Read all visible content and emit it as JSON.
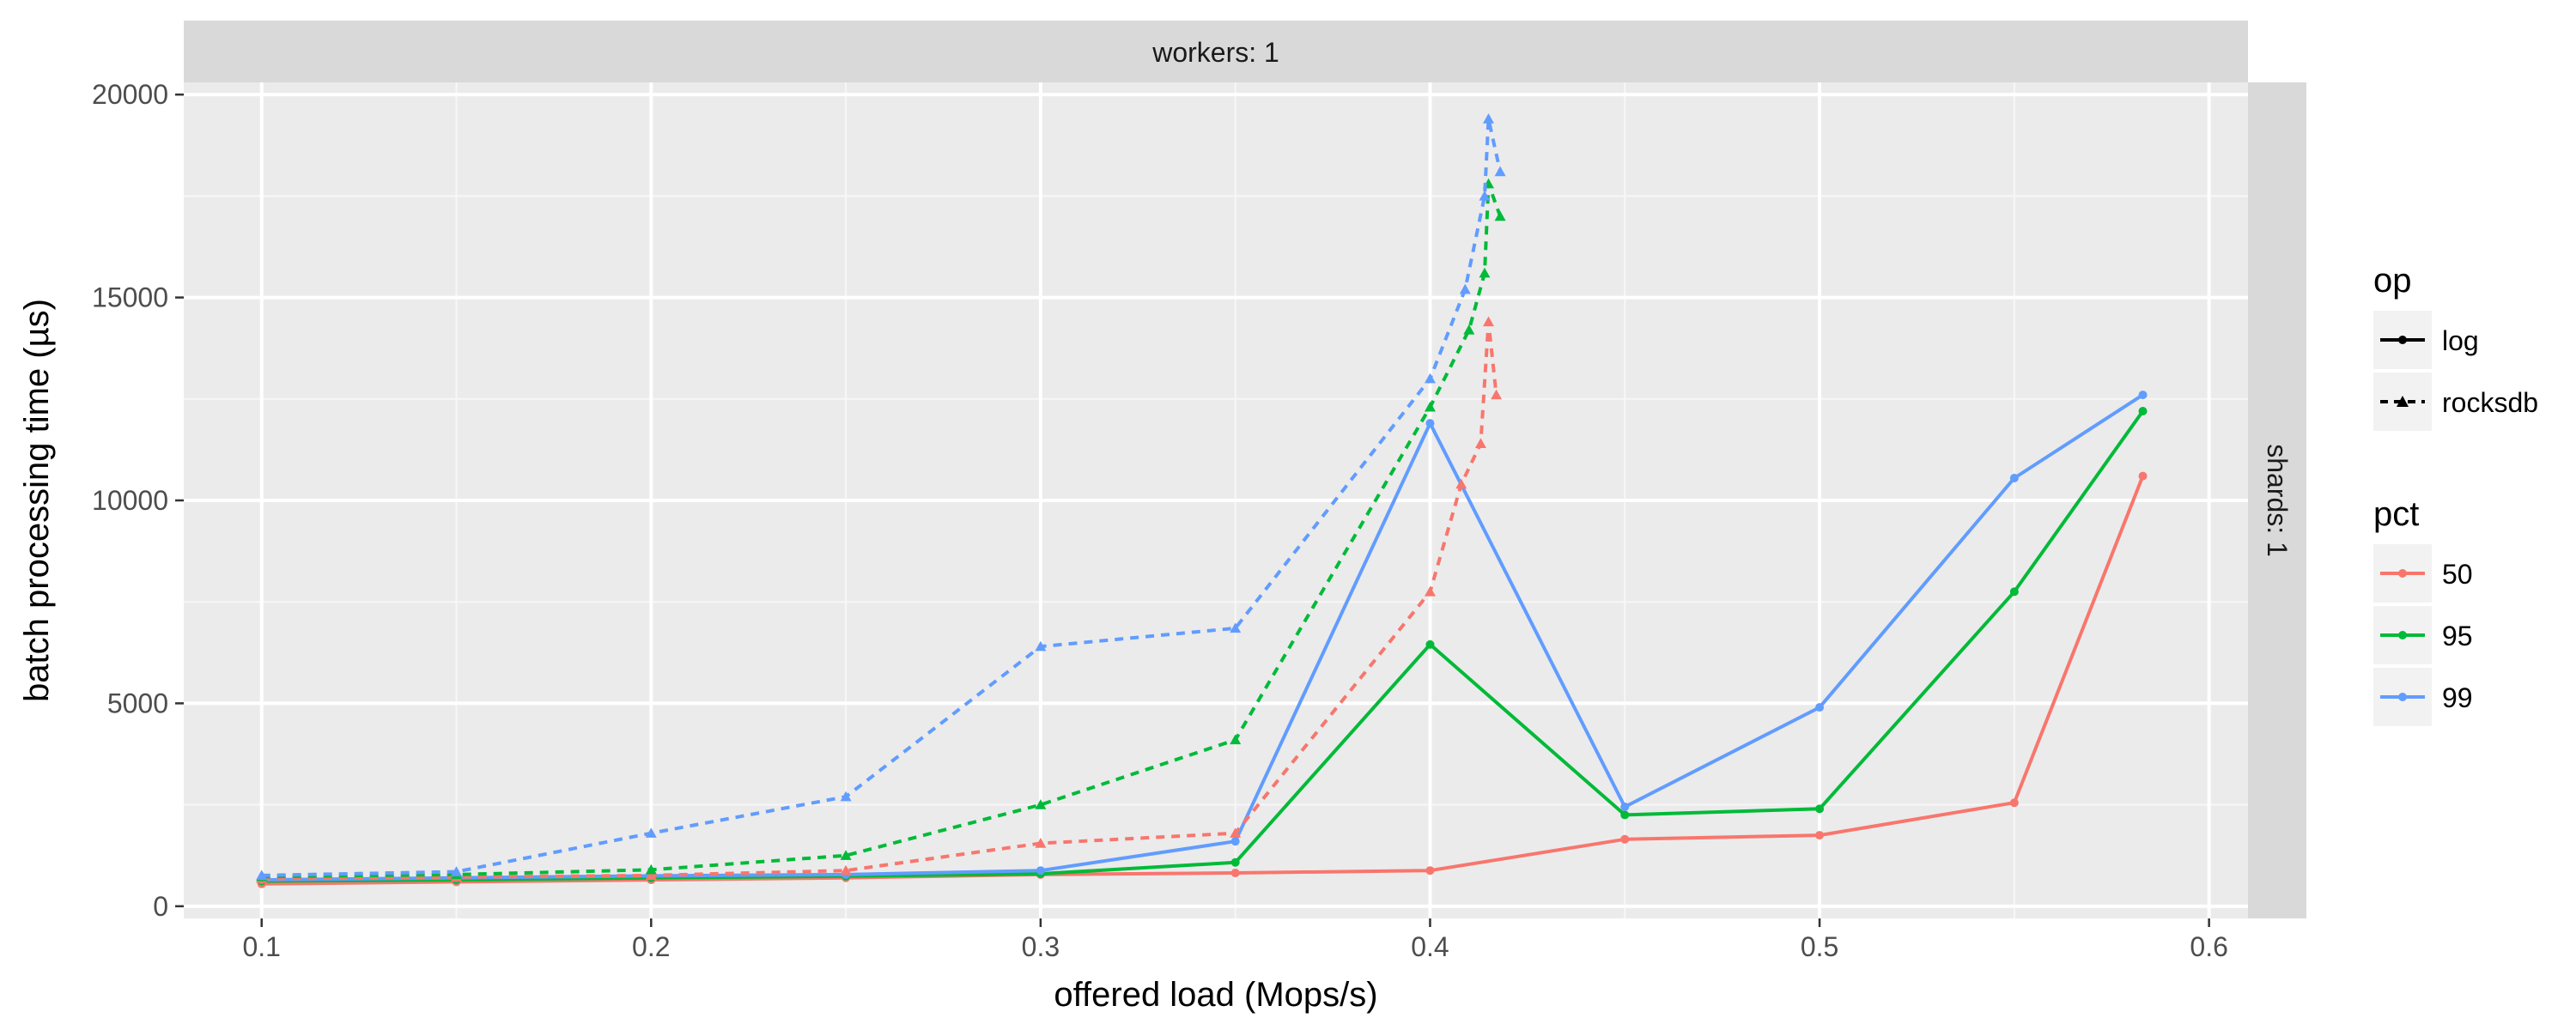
{
  "chart_data": {
    "type": "line",
    "facet": {
      "top_strip": "workers: 1",
      "right_strip": "shards: 1"
    },
    "xlabel": "offered load (Mops/s)",
    "ylabel": "batch processing time (µs)",
    "xlim": [
      0.08,
      0.61
    ],
    "ylim": [
      -300,
      20300
    ],
    "xticks": [
      0.1,
      0.2,
      0.3,
      0.4,
      0.5,
      0.6
    ],
    "xtick_labels": [
      "0.1",
      "0.2",
      "0.3",
      "0.4",
      "0.5",
      "0.6"
    ],
    "yticks": [
      0,
      5000,
      10000,
      15000,
      20000
    ],
    "ytick_labels": [
      "0",
      "5000",
      "10000",
      "15000",
      "20000"
    ],
    "grid": true,
    "legend": {
      "placement": "right",
      "groups": [
        {
          "title": "op",
          "entries": [
            {
              "label": "log",
              "linetype": "solid"
            },
            {
              "label": "rocksdb",
              "linetype": "dashed"
            }
          ]
        },
        {
          "title": "pct",
          "entries": [
            {
              "label": "50",
              "color": "#f8766d"
            },
            {
              "label": "95",
              "color": "#00ba38"
            },
            {
              "label": "99",
              "color": "#619cff"
            }
          ]
        }
      ]
    },
    "series": [
      {
        "op": "log",
        "pct": "50",
        "color": "#f8766d",
        "linetype": "solid",
        "x": [
          0.1,
          0.15,
          0.2,
          0.25,
          0.3,
          0.35,
          0.4,
          0.45,
          0.5,
          0.55,
          0.583
        ],
        "y": [
          550,
          600,
          650,
          700,
          780,
          820,
          880,
          1650,
          1750,
          2550,
          10600
        ]
      },
      {
        "op": "log",
        "pct": "95",
        "color": "#00ba38",
        "linetype": "solid",
        "x": [
          0.1,
          0.15,
          0.2,
          0.25,
          0.3,
          0.35,
          0.4,
          0.45,
          0.5,
          0.55,
          0.583
        ],
        "y": [
          620,
          650,
          700,
          740,
          800,
          1080,
          6450,
          2250,
          2400,
          7750,
          12200
        ]
      },
      {
        "op": "log",
        "pct": "99",
        "color": "#619cff",
        "linetype": "solid",
        "x": [
          0.1,
          0.15,
          0.2,
          0.25,
          0.3,
          0.35,
          0.4,
          0.45,
          0.5,
          0.55,
          0.583
        ],
        "y": [
          650,
          700,
          750,
          780,
          880,
          1600,
          11900,
          2450,
          4900,
          10550,
          12600
        ]
      },
      {
        "op": "rocksdb",
        "pct": "50",
        "color": "#f8766d",
        "linetype": "dashed",
        "x": [
          0.1,
          0.15,
          0.2,
          0.25,
          0.3,
          0.35,
          0.4,
          0.408,
          0.413,
          0.415,
          0.417
        ],
        "y": [
          680,
          720,
          760,
          880,
          1550,
          1800,
          7750,
          10400,
          11400,
          14400,
          12600
        ]
      },
      {
        "op": "rocksdb",
        "pct": "95",
        "color": "#00ba38",
        "linetype": "dashed",
        "x": [
          0.1,
          0.15,
          0.2,
          0.25,
          0.3,
          0.35,
          0.4,
          0.41,
          0.414,
          0.415,
          0.418
        ],
        "y": [
          730,
          780,
          900,
          1250,
          2500,
          4100,
          12300,
          14200,
          15600,
          17800,
          17000
        ]
      },
      {
        "op": "rocksdb",
        "pct": "99",
        "color": "#619cff",
        "linetype": "dashed",
        "x": [
          0.1,
          0.15,
          0.2,
          0.25,
          0.3,
          0.35,
          0.4,
          0.409,
          0.414,
          0.415,
          0.418
        ],
        "y": [
          760,
          850,
          1800,
          2700,
          6400,
          6850,
          13000,
          15200,
          17500,
          19400,
          18100
        ]
      }
    ]
  }
}
